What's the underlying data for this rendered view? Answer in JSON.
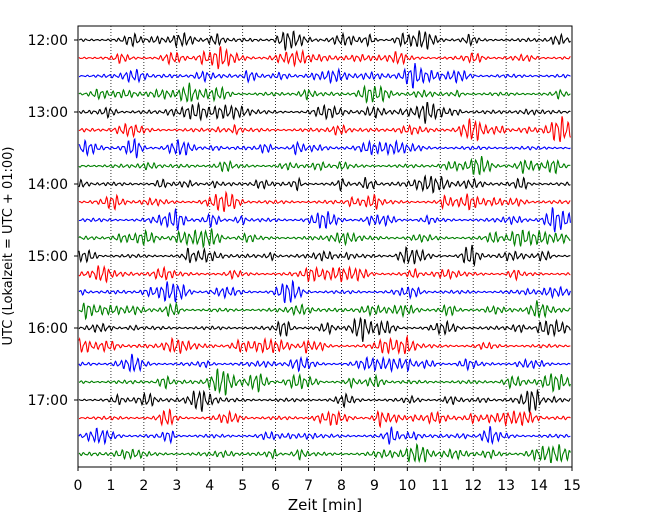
{
  "chart_data": {
    "type": "line",
    "title": "",
    "xlabel": "Zeit  [min]",
    "ylabel": "UTC (Lokalzeit = UTC + 01:00)",
    "xlim": [
      0,
      15
    ],
    "x_ticks": [
      "0",
      "1",
      "2",
      "3",
      "4",
      "5",
      "6",
      "7",
      "8",
      "9",
      "10",
      "11",
      "12",
      "13",
      "14",
      "15"
    ],
    "y_ticks": [
      "12:00",
      "13:00",
      "14:00",
      "15:00",
      "16:00",
      "17:00"
    ],
    "trace_interval_min": 15,
    "first_trace": "12:00",
    "trace_count": 24,
    "trace_colors": [
      "#000000",
      "#ff0000",
      "#0000ff",
      "#008000"
    ],
    "grid": "vertical dotted"
  }
}
